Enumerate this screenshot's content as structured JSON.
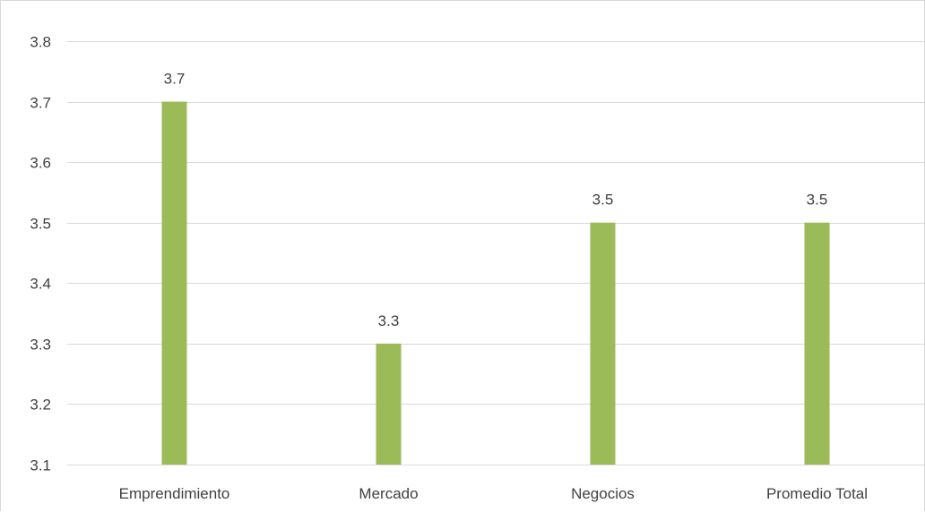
{
  "chart_data": {
    "type": "bar",
    "title": "",
    "xlabel": "",
    "ylabel": "",
    "categories": [
      "Emprendimiento",
      "Mercado",
      "Negocios",
      "Promedio Total"
    ],
    "values": [
      3.7,
      3.3,
      3.5,
      3.5
    ],
    "data_labels": [
      "3.7",
      "3.3",
      "3.5",
      "3.5"
    ],
    "ylim": [
      3.1,
      3.8
    ],
    "y_ticks": [
      "3.1",
      "3.2",
      "3.3",
      "3.4",
      "3.5",
      "3.6",
      "3.7",
      "3.8"
    ],
    "grid": true,
    "legend": "none",
    "bar_color": "#9bbb59",
    "grid_color": "#d9d9d9"
  }
}
